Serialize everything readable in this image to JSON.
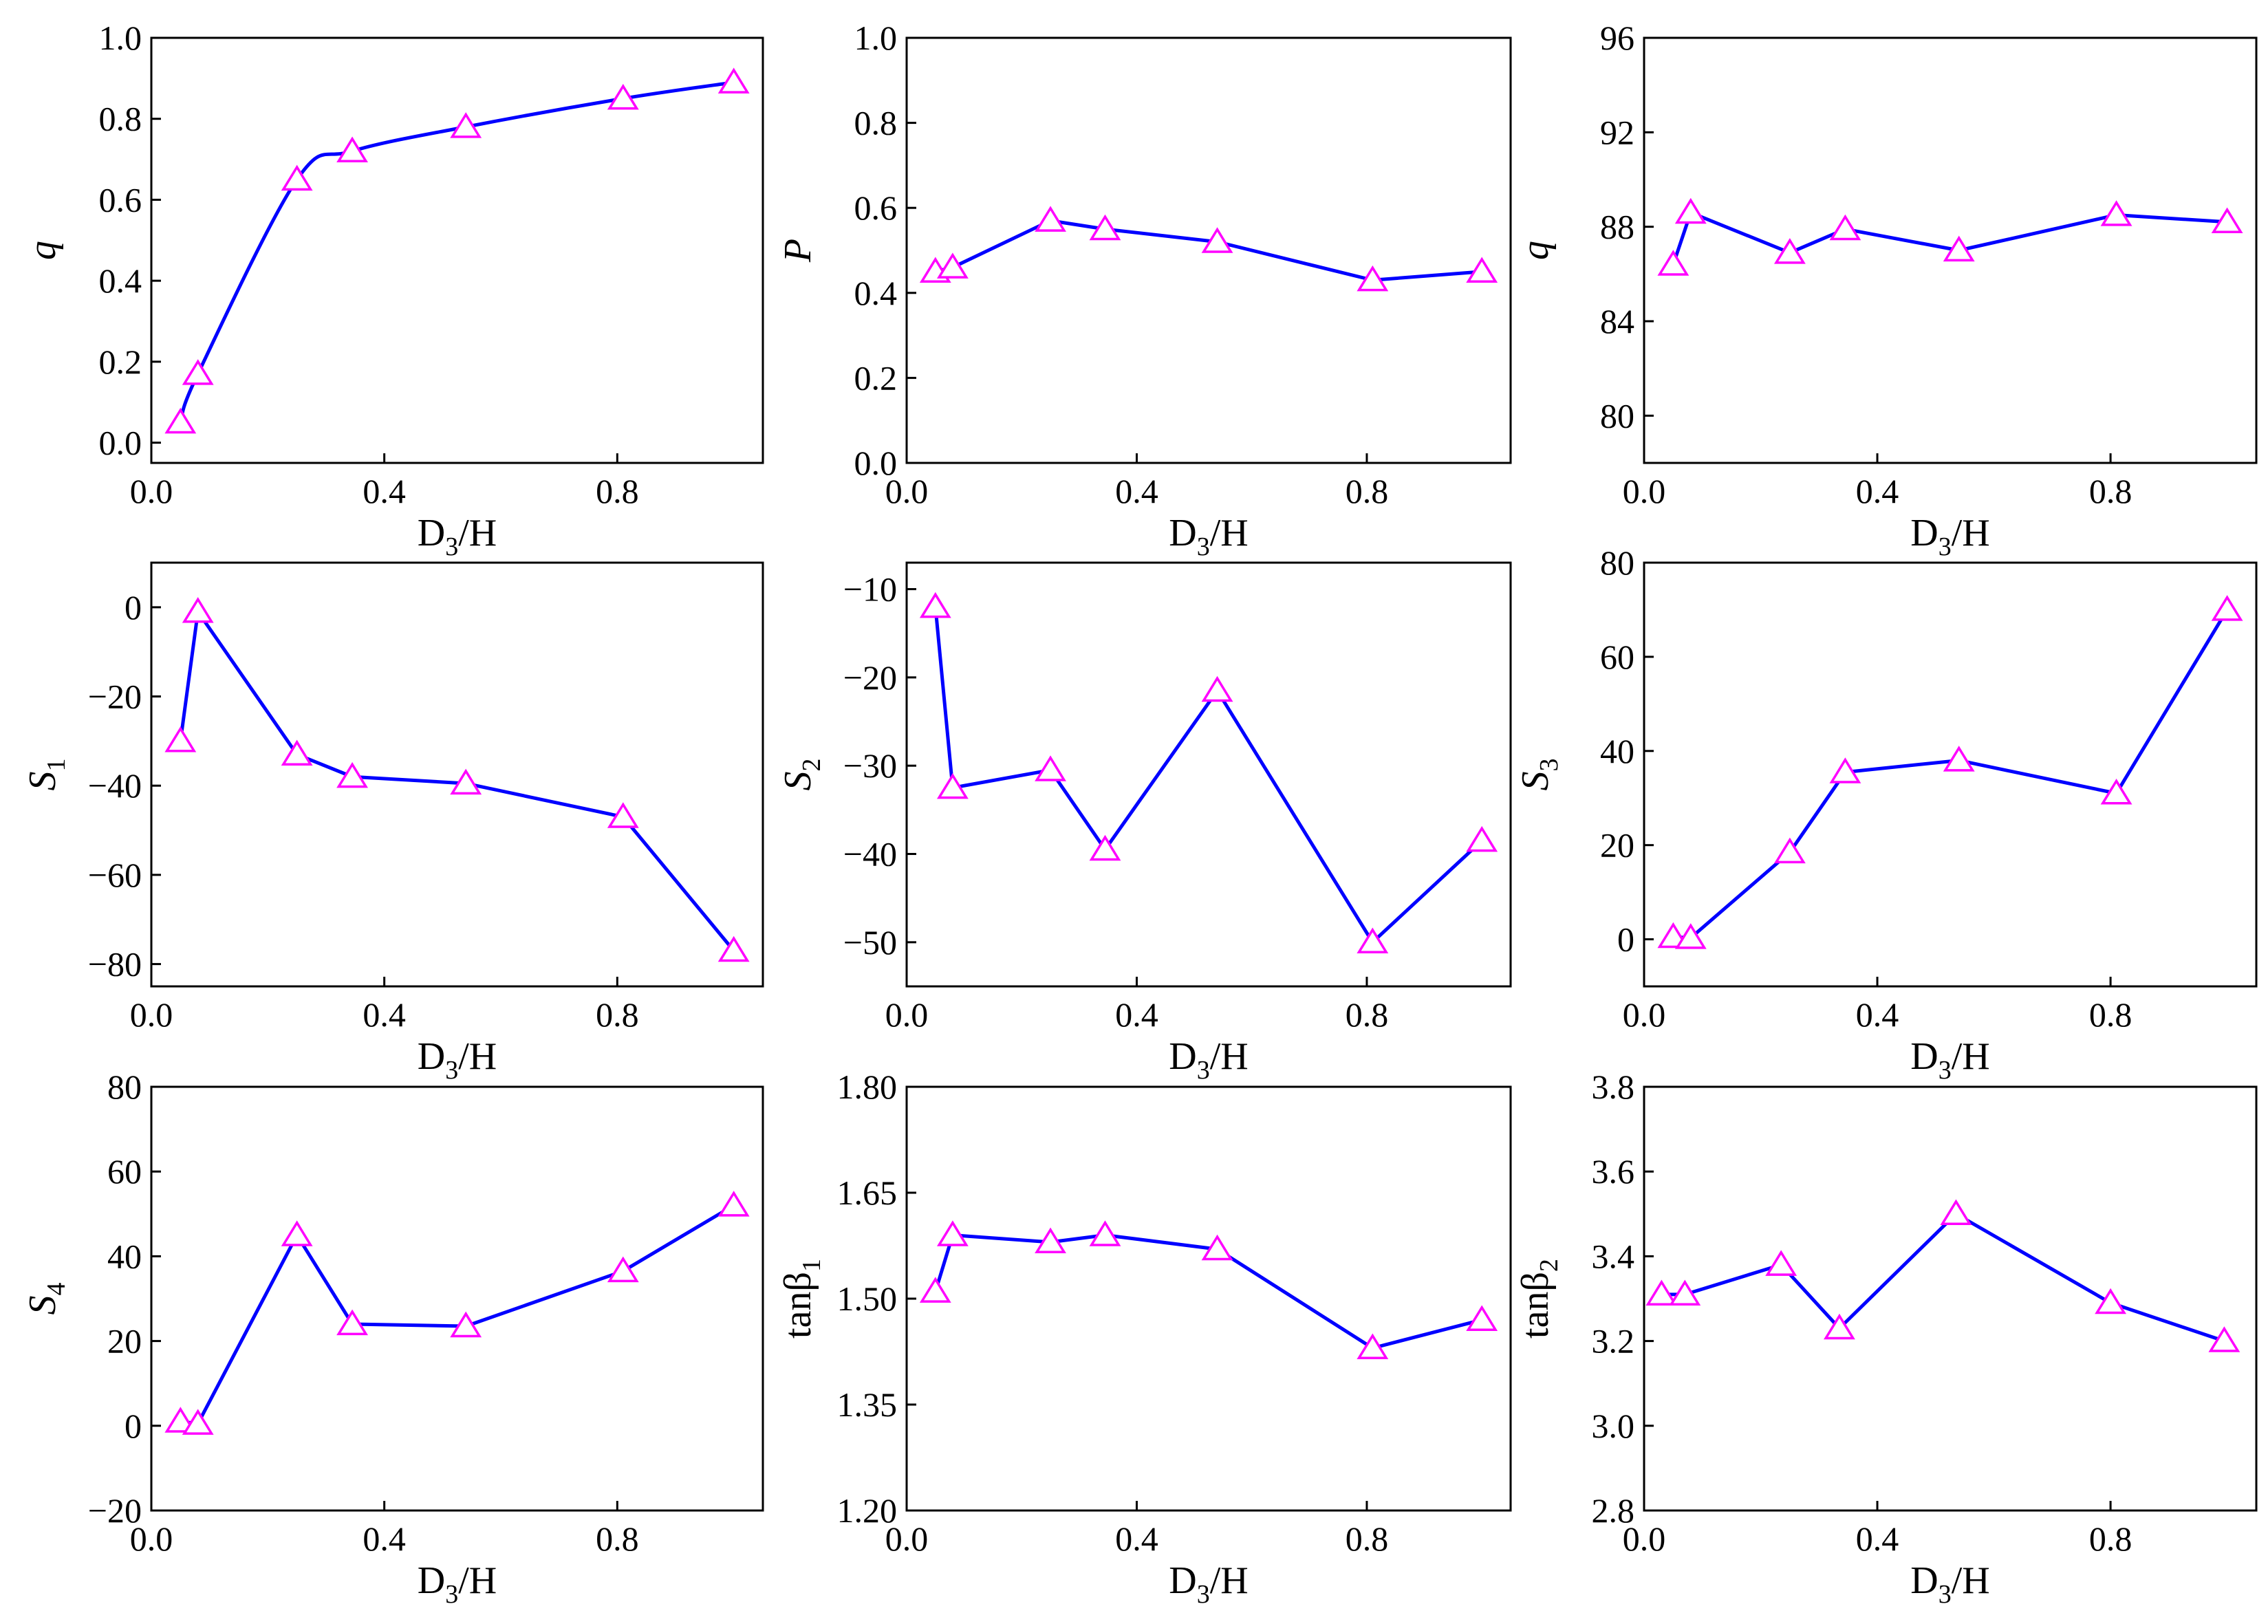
{
  "styles": {
    "line_color": "#0000ff",
    "marker_color": "#ff00ff",
    "marker": "open-triangle",
    "axis_color": "#000000"
  },
  "chart_data": [
    {
      "type": "line",
      "smooth": true,
      "xlabel": "D3/H",
      "ylabel": "q",
      "x": [
        0.05,
        0.08,
        0.25,
        0.345,
        0.54,
        0.81,
        1.0
      ],
      "y": [
        0.05,
        0.17,
        0.65,
        0.72,
        0.78,
        0.85,
        0.89
      ],
      "xlim": [
        0.0,
        1.05
      ],
      "ylim": [
        -0.05,
        1.0
      ],
      "xticks": [
        0.0,
        0.4,
        0.8
      ],
      "xtick_labels": [
        "0.0",
        "0.4",
        "0.8"
      ],
      "yticks": [
        0.0,
        0.2,
        0.4,
        0.6,
        0.8,
        1.0
      ],
      "ytick_labels": [
        "0.0",
        "0.2",
        "0.4",
        "0.6",
        "0.8",
        "1.0"
      ]
    },
    {
      "type": "line",
      "xlabel": "D3/H",
      "ylabel": "P",
      "x": [
        0.05,
        0.08,
        0.25,
        0.345,
        0.54,
        0.81,
        1.0
      ],
      "y": [
        0.45,
        0.46,
        0.57,
        0.55,
        0.52,
        0.43,
        0.45
      ],
      "xlim": [
        0.0,
        1.05
      ],
      "ylim": [
        0.0,
        1.0
      ],
      "xticks": [
        0.0,
        0.4,
        0.8
      ],
      "xtick_labels": [
        "0.0",
        "0.4",
        "0.8"
      ],
      "yticks": [
        0.0,
        0.2,
        0.4,
        0.6,
        0.8,
        1.0
      ],
      "ytick_labels": [
        "0.0",
        "0.2",
        "0.4",
        "0.6",
        "0.8",
        "1.0"
      ]
    },
    {
      "type": "line",
      "xlabel": "D3/H",
      "ylabel": "q",
      "x": [
        0.05,
        0.08,
        0.25,
        0.345,
        0.54,
        0.81,
        1.0
      ],
      "y": [
        86.4,
        88.6,
        86.9,
        87.9,
        87.0,
        88.5,
        88.2
      ],
      "xlim": [
        0.0,
        1.05
      ],
      "ylim": [
        78.0,
        96.0
      ],
      "xticks": [
        0.0,
        0.4,
        0.8
      ],
      "xtick_labels": [
        "0.0",
        "0.4",
        "0.8"
      ],
      "yticks": [
        80,
        84,
        88,
        92,
        96
      ],
      "ytick_labels": [
        "80",
        "84",
        "88",
        "92",
        "96"
      ]
    },
    {
      "type": "line",
      "xlabel": "D3/H",
      "ylabel": "S1",
      "x": [
        0.05,
        0.08,
        0.25,
        0.345,
        0.54,
        0.81,
        1.0
      ],
      "y": [
        -30,
        -1,
        -33,
        -38,
        -39.5,
        -47,
        -77
      ],
      "xlim": [
        0.0,
        1.05
      ],
      "ylim": [
        -85,
        10
      ],
      "xticks": [
        0.0,
        0.4,
        0.8
      ],
      "xtick_labels": [
        "0.0",
        "0.4",
        "0.8"
      ],
      "yticks": [
        -80,
        -60,
        -40,
        -20,
        0
      ],
      "ytick_labels": [
        "−80",
        "−60",
        "−40",
        "−20",
        "0"
      ]
    },
    {
      "type": "line",
      "xlabel": "D3/H",
      "ylabel": "S2",
      "x": [
        0.05,
        0.08,
        0.25,
        0.345,
        0.54,
        0.81,
        1.0
      ],
      "y": [
        -12,
        -32.5,
        -30.5,
        -39.5,
        -21.5,
        -50,
        -38.5
      ],
      "xlim": [
        0.0,
        1.05
      ],
      "ylim": [
        -55,
        -7
      ],
      "xticks": [
        0.0,
        0.4,
        0.8
      ],
      "xtick_labels": [
        "0.0",
        "0.4",
        "0.8"
      ],
      "yticks": [
        -50,
        -40,
        -30,
        -20,
        -10
      ],
      "ytick_labels": [
        "−50",
        "−40",
        "−30",
        "−20",
        "−10"
      ]
    },
    {
      "type": "line",
      "xlabel": "D3/H",
      "ylabel": "S3",
      "x": [
        0.05,
        0.08,
        0.25,
        0.345,
        0.54,
        0.81,
        1.0
      ],
      "y": [
        0.5,
        0.3,
        18.5,
        35.5,
        38.0,
        31.0,
        70.0
      ],
      "xlim": [
        0.0,
        1.05
      ],
      "ylim": [
        -10,
        80
      ],
      "xticks": [
        0.0,
        0.4,
        0.8
      ],
      "xtick_labels": [
        "0.0",
        "0.4",
        "0.8"
      ],
      "yticks": [
        0,
        20,
        40,
        60,
        80
      ],
      "ytick_labels": [
        "0",
        "20",
        "40",
        "60",
        "80"
      ]
    },
    {
      "type": "line",
      "xlabel": "D3/H",
      "ylabel": "S4",
      "x": [
        0.05,
        0.08,
        0.25,
        0.345,
        0.54,
        0.81,
        1.0
      ],
      "y": [
        1.0,
        0.5,
        45.0,
        24.0,
        23.5,
        36.5,
        52.0
      ],
      "xlim": [
        0.0,
        1.05
      ],
      "ylim": [
        -20,
        80
      ],
      "xticks": [
        0.0,
        0.4,
        0.8
      ],
      "xtick_labels": [
        "0.0",
        "0.4",
        "0.8"
      ],
      "yticks": [
        -20,
        0,
        20,
        40,
        60,
        80
      ],
      "ytick_labels": [
        "−20",
        "0",
        "20",
        "40",
        "60",
        "80"
      ]
    },
    {
      "type": "line",
      "xlabel": "D3/H",
      "ylabel": "tanβ1",
      "x": [
        0.05,
        0.08,
        0.25,
        0.345,
        0.54,
        0.81,
        1.0
      ],
      "y": [
        1.51,
        1.59,
        1.58,
        1.59,
        1.57,
        1.43,
        1.47
      ],
      "xlim": [
        0.0,
        1.05
      ],
      "ylim": [
        1.2,
        1.8
      ],
      "xticks": [
        0.0,
        0.4,
        0.8
      ],
      "xtick_labels": [
        "0.0",
        "0.4",
        "0.8"
      ],
      "yticks": [
        1.2,
        1.35,
        1.5,
        1.65,
        1.8
      ],
      "ytick_labels": [
        "1.20",
        "1.35",
        "1.50",
        "1.65",
        "1.80"
      ]
    },
    {
      "type": "line",
      "xlabel": "D3/H",
      "ylabel": "tanβ2",
      "x": [
        0.03,
        0.07,
        0.235,
        0.335,
        0.535,
        0.8,
        0.995
      ],
      "y": [
        3.31,
        3.31,
        3.38,
        3.23,
        3.5,
        3.29,
        3.2
      ],
      "xlim": [
        0.0,
        1.05
      ],
      "ylim": [
        2.8,
        3.8
      ],
      "xticks": [
        0.0,
        0.4,
        0.8
      ],
      "xtick_labels": [
        "0.0",
        "0.4",
        "0.8"
      ],
      "yticks": [
        2.8,
        3.0,
        3.2,
        3.4,
        3.6,
        3.8
      ],
      "ytick_labels": [
        "2.8",
        "3.0",
        "3.2",
        "3.4",
        "3.6",
        "3.8"
      ]
    }
  ]
}
